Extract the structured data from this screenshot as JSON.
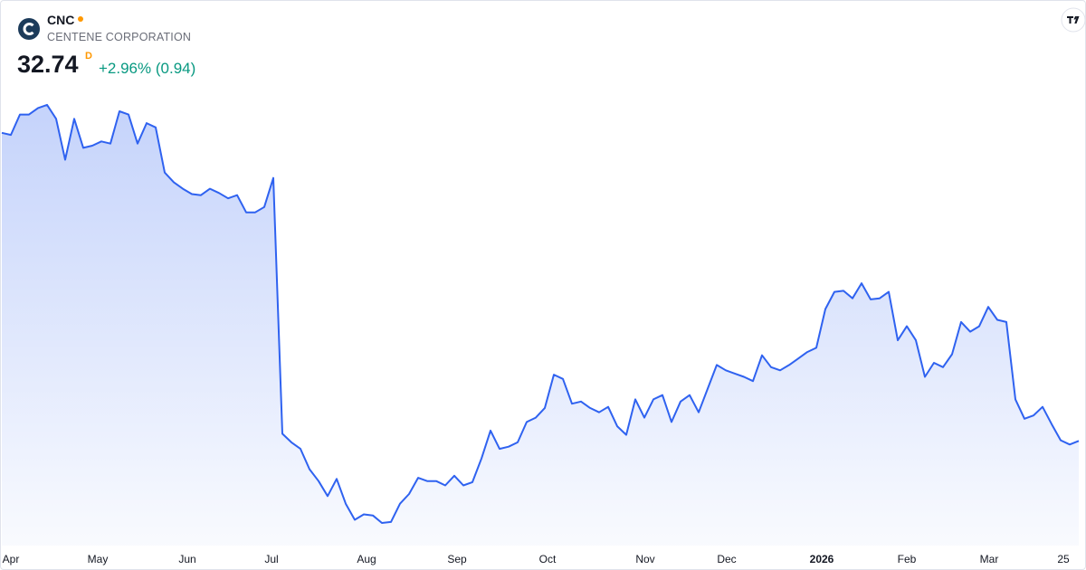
{
  "header": {
    "symbol": "CNC",
    "name": "CENTENE CORPORATION",
    "price": 32.74,
    "interval": "D",
    "change": "+2.96% (0.94)"
  },
  "chart_data": {
    "type": "area",
    "series": [
      {
        "color": "#2f62f0",
        "values": [
          61.4,
          61.2,
          63.1,
          63.1,
          63.7,
          64.0,
          62.7,
          58.9,
          62.7,
          60.0,
          60.2,
          60.6,
          60.4,
          63.4,
          63.1,
          60.4,
          62.3,
          61.9,
          57.7,
          56.8,
          56.2,
          55.7,
          55.6,
          56.2,
          55.8,
          55.3,
          55.6,
          54.0,
          54.0,
          54.5,
          57.2,
          33.4,
          32.6,
          32.0,
          30.1,
          29.0,
          27.6,
          29.2,
          26.9,
          25.4,
          25.9,
          25.8,
          25.1,
          25.2,
          26.9,
          27.8,
          29.3,
          29.0,
          29.0,
          28.6,
          29.5,
          28.6,
          28.9,
          31.1,
          33.7,
          32.0,
          32.2,
          32.6,
          34.5,
          34.9,
          35.8,
          38.9,
          38.5,
          36.2,
          36.4,
          35.8,
          35.4,
          35.9,
          34.1,
          33.3,
          36.6,
          34.9,
          36.6,
          37.0,
          34.5,
          36.4,
          37.0,
          35.4,
          37.6,
          39.8,
          39.3,
          39.0,
          38.7,
          38.3,
          40.7,
          39.6,
          39.3,
          39.8,
          40.4,
          41.0,
          41.4,
          45.0,
          46.6,
          46.7,
          46.0,
          47.4,
          45.9,
          46.0,
          46.6,
          42.1,
          43.4,
          42.1,
          38.7,
          40.0,
          39.6,
          40.8,
          43.8,
          42.9,
          43.4,
          45.2,
          44.0,
          43.8,
          36.6,
          34.8,
          35.1,
          35.9,
          34.3,
          32.8,
          32.4,
          32.74
        ]
      }
    ],
    "xlim": [
      0,
      119
    ],
    "ylim": [
      23,
      65
    ],
    "xticks": [
      {
        "value": 1,
        "label": "Apr"
      },
      {
        "value": 10.6,
        "label": "May"
      },
      {
        "value": 20.5,
        "label": "Jun"
      },
      {
        "value": 29.8,
        "label": "Jul"
      },
      {
        "value": 40.3,
        "label": "Aug"
      },
      {
        "value": 50.3,
        "label": "Sep"
      },
      {
        "value": 60.3,
        "label": "Oct"
      },
      {
        "value": 71.1,
        "label": "Nov"
      },
      {
        "value": 80.1,
        "label": "Dec"
      },
      {
        "value": 90.6,
        "label": "2026"
      },
      {
        "value": 100,
        "label": "Feb"
      },
      {
        "value": 109.1,
        "label": "Mar"
      },
      {
        "value": 117.3,
        "label": "25"
      }
    ]
  }
}
